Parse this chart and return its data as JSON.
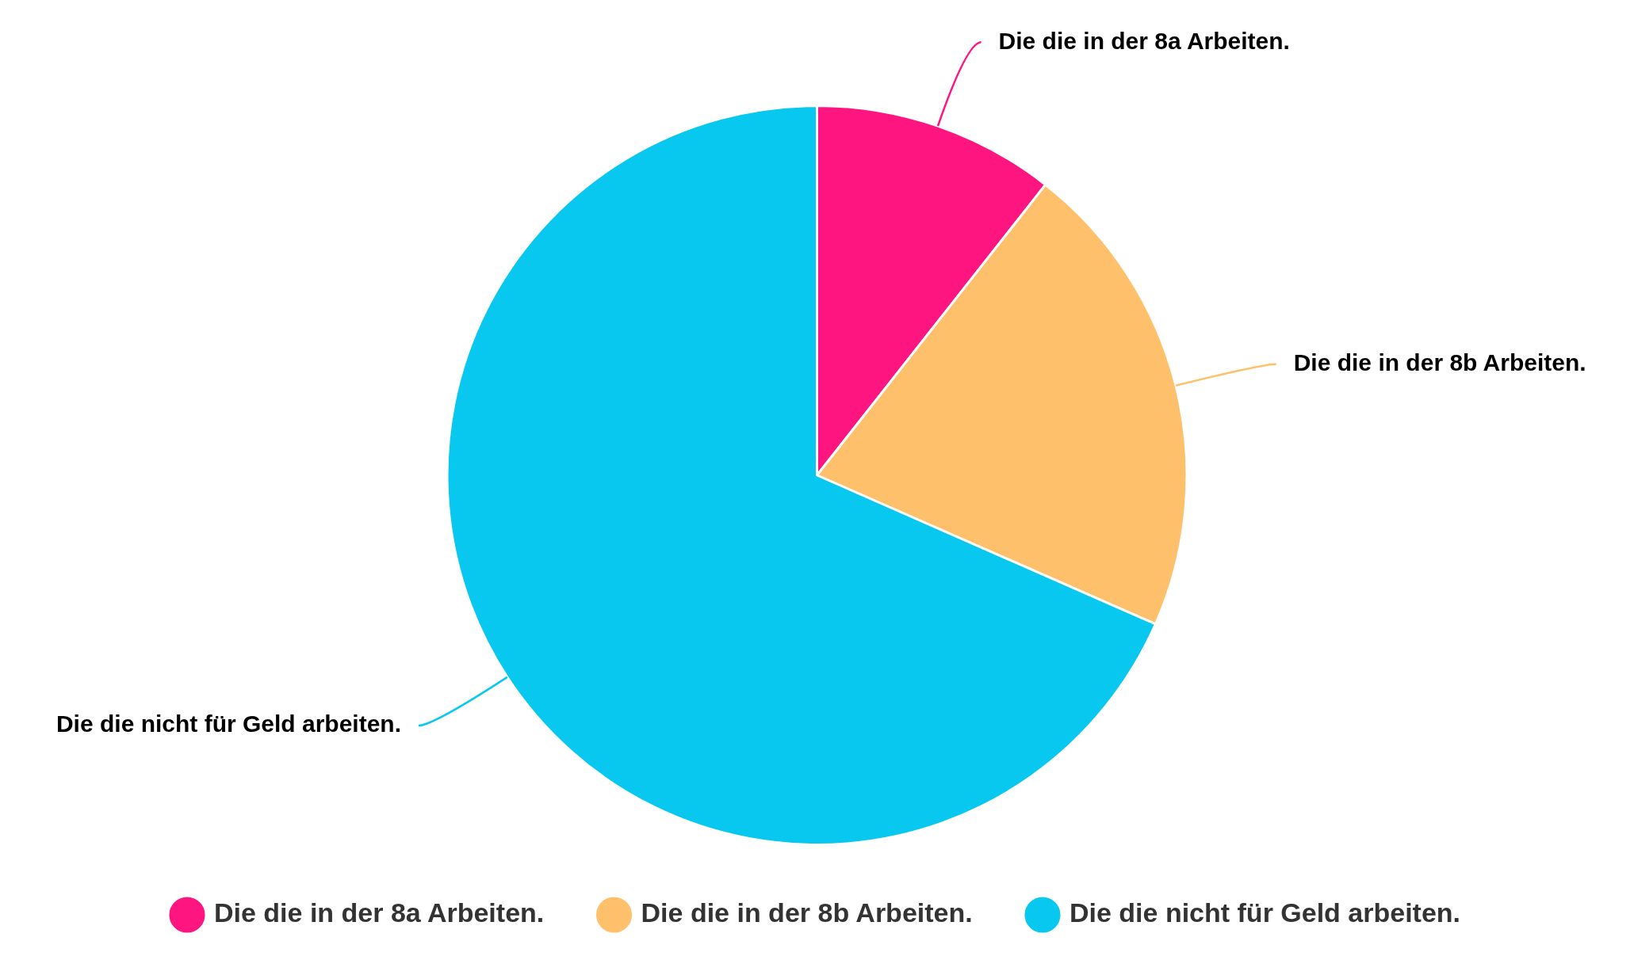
{
  "chart_data": {
    "type": "pie",
    "categories": [
      "Die die in der 8a Arbeiten.",
      "Die die in der 8b Arbeiten.",
      "Die die nicht für Geld arbeiten."
    ],
    "values": [
      10.6,
      21,
      68.4
    ],
    "colors": [
      "#ff1580",
      "#ffc06b",
      "#08c8f0"
    ],
    "legend": "bottom"
  }
}
